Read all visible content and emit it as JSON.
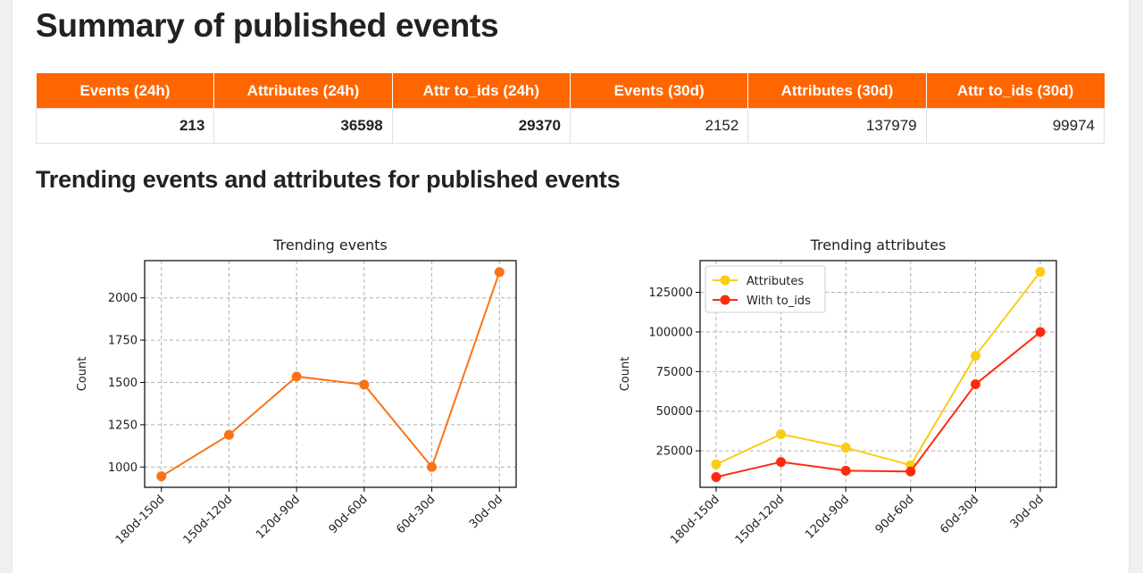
{
  "page": {
    "title": "Summary of published events",
    "trend_heading": "Trending events and attributes for published events"
  },
  "summary_table": {
    "headers": [
      "Events (24h)",
      "Attributes (24h)",
      "Attr to_ids (24h)",
      "Events (30d)",
      "Attributes (30d)",
      "Attr to_ids (30d)"
    ],
    "values": [
      "213",
      "36598",
      "29370",
      "2152",
      "137979",
      "99974"
    ]
  },
  "colors": {
    "header_bg": "#ff6600",
    "events_line": "#f97316",
    "attributes_line": "#facc15",
    "to_ids_line": "#ff2a0e"
  },
  "chart_data": [
    {
      "type": "line",
      "title": "Trending events",
      "xlabel": "",
      "ylabel": "Count",
      "categories": [
        "180d-150d",
        "150d-120d",
        "120d-90d",
        "90d-60d",
        "60d-30d",
        "30d-0d"
      ],
      "yticks": [
        "1000",
        "1250",
        "1500",
        "1750",
        "2000"
      ],
      "ylim": [
        880,
        2220
      ],
      "grid": true,
      "series": [
        {
          "name": "Events",
          "values": [
            945,
            1190,
            1535,
            1487,
            1000,
            2152
          ]
        }
      ]
    },
    {
      "type": "line",
      "title": "Trending attributes",
      "xlabel": "",
      "ylabel": "Count",
      "categories": [
        "180d-150d",
        "150d-120d",
        "120d-90d",
        "90d-60d",
        "60d-30d",
        "30d-0d"
      ],
      "yticks": [
        "25000",
        "50000",
        "75000",
        "100000",
        "125000"
      ],
      "ylim": [
        2000,
        145000
      ],
      "grid": true,
      "legend": "top-left",
      "series": [
        {
          "name": "Attributes",
          "values": [
            16500,
            35500,
            27000,
            16000,
            85000,
            137979
          ]
        },
        {
          "name": "With to_ids",
          "values": [
            8500,
            18000,
            12500,
            12000,
            67000,
            99974
          ]
        }
      ]
    }
  ]
}
